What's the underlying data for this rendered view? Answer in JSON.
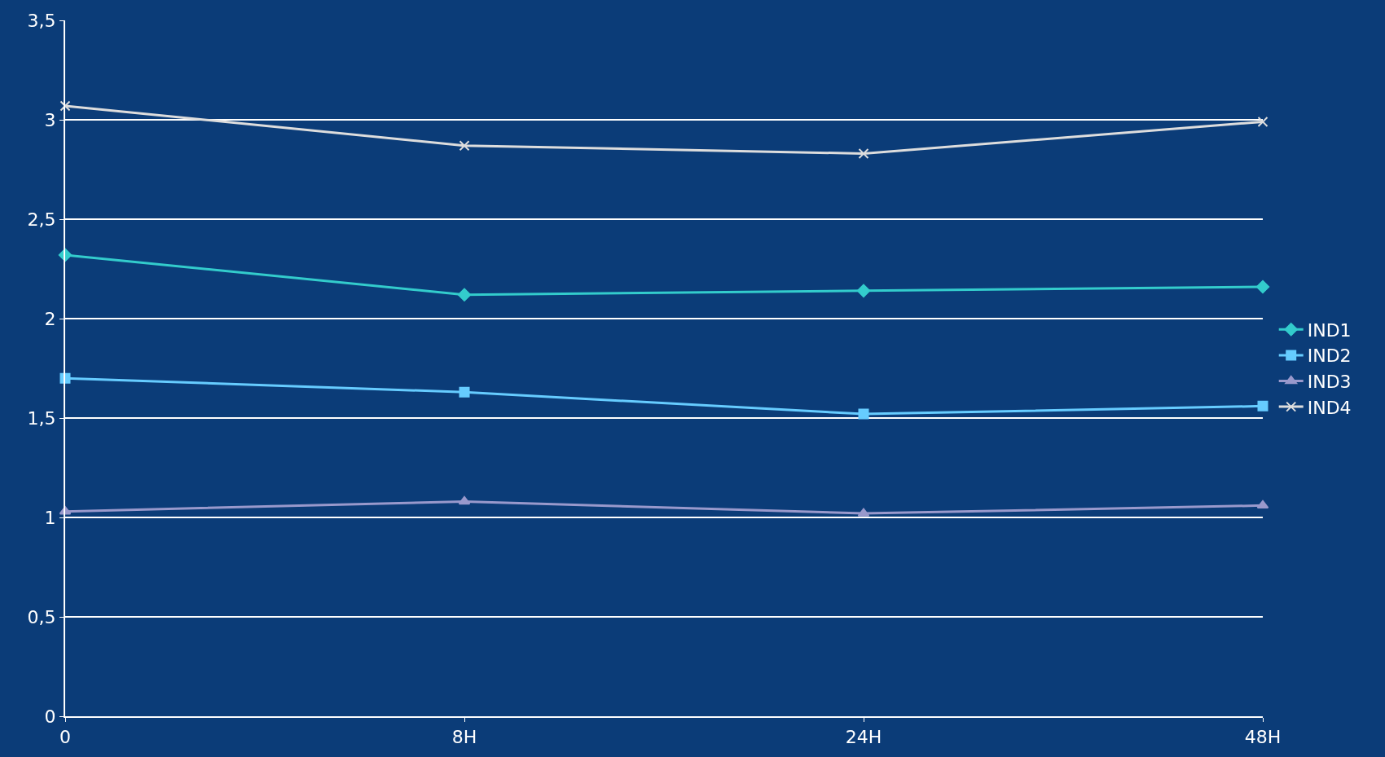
{
  "chart_data": {
    "type": "line",
    "categories": [
      "0",
      "8H",
      "24H",
      "48H"
    ],
    "series": [
      {
        "name": "IND1",
        "color": "#33cccc",
        "marker": "diamond",
        "values": [
          2.32,
          2.12,
          2.14,
          2.16
        ]
      },
      {
        "name": "IND2",
        "color": "#66ccff",
        "marker": "square",
        "values": [
          1.7,
          1.63,
          1.52,
          1.56
        ]
      },
      {
        "name": "IND3",
        "color": "#9999cc",
        "marker": "triangle",
        "values": [
          1.03,
          1.08,
          1.02,
          1.06
        ]
      },
      {
        "name": "IND4",
        "color": "#dddddd",
        "marker": "cross",
        "values": [
          3.07,
          2.87,
          2.83,
          2.99
        ]
      }
    ],
    "ylim": [
      0,
      3.5
    ],
    "yticks": [
      0,
      {
        "value": 0.5,
        "label": "0,5"
      },
      1,
      {
        "value": 1.5,
        "label": "1,5"
      },
      2,
      {
        "value": 2.5,
        "label": "2,5"
      },
      3,
      {
        "value": 3.5,
        "label": "3,5"
      }
    ],
    "grid": "y",
    "legend": "right",
    "line_style": "solid"
  }
}
